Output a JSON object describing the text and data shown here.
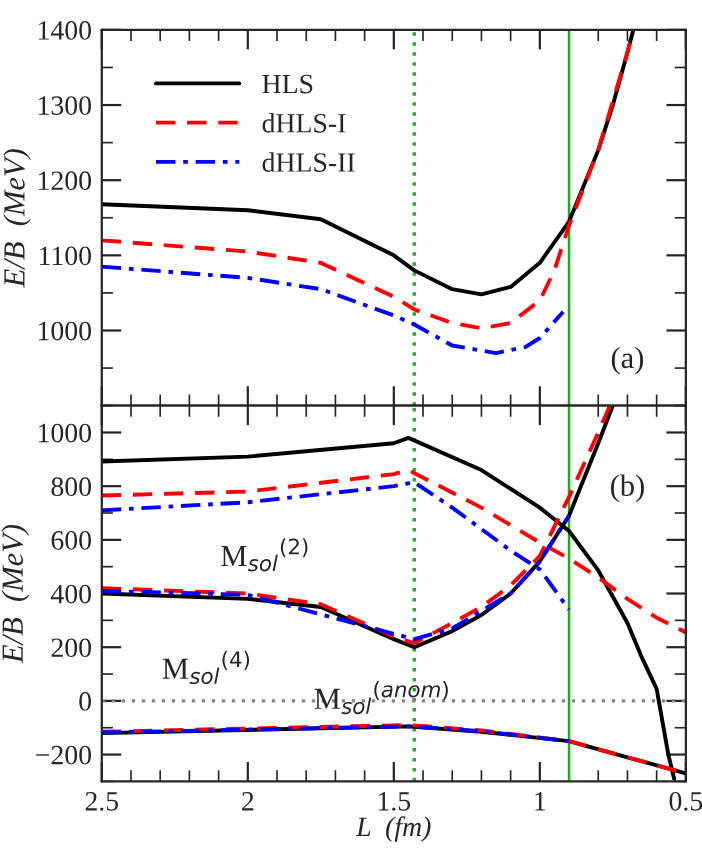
{
  "chart_data": [
    {
      "type": "line",
      "ylabel": "E/B  (MeV)",
      "xlim": [
        2.5,
        0.5
      ],
      "ylim": [
        900,
        1400
      ],
      "yticks": [
        1000,
        1100,
        1200,
        1300,
        1400
      ],
      "tick_labels": "y",
      "legend": "top left",
      "annotations": [
        "(a)"
      ],
      "ref_lines": [
        {
          "axis": "x",
          "value": 1.43,
          "color": "#22aa22",
          "line_style": "dotted"
        },
        {
          "axis": "x",
          "value": 0.9,
          "color": "#22aa22",
          "line_style": "solid"
        }
      ],
      "series": [
        {
          "name": "HLS",
          "color": "#000000",
          "line_style": "solid",
          "x": [
            2.5,
            2.0,
            1.75,
            1.5,
            1.43,
            1.3,
            1.2,
            1.1,
            1.0,
            0.9,
            0.8,
            0.75,
            0.7,
            0.68
          ],
          "values": [
            1168,
            1160,
            1148,
            1100,
            1080,
            1055,
            1048,
            1058,
            1090,
            1145,
            1240,
            1300,
            1370,
            1400
          ]
        },
        {
          "name": "dHLS-I",
          "color": "#ff0000",
          "line_style": "dashed",
          "x": [
            2.5,
            2.0,
            1.75,
            1.5,
            1.43,
            1.3,
            1.2,
            1.1,
            1.0,
            0.95,
            0.9,
            0.8,
            0.7,
            0.68
          ],
          "values": [
            1120,
            1105,
            1090,
            1045,
            1028,
            1010,
            1003,
            1010,
            1040,
            1080,
            1140,
            1240,
            1370,
            1400
          ]
        },
        {
          "name": "dHLS-II",
          "color": "#0000ff",
          "line_style": "dashdot",
          "x": [
            2.5,
            2.0,
            1.75,
            1.5,
            1.43,
            1.3,
            1.15,
            1.05,
            1.0,
            0.92
          ],
          "values": [
            1085,
            1070,
            1055,
            1020,
            1008,
            980,
            970,
            978,
            990,
            1025
          ]
        }
      ]
    },
    {
      "type": "line",
      "xlabel": "L  (fm)",
      "ylabel": "E/B  (MeV)",
      "xlim": [
        2.5,
        0.5
      ],
      "xticks": [
        2.5,
        2,
        1.5,
        1,
        0.5
      ],
      "ylim": [
        -300,
        1100
      ],
      "yticks": [
        {
          "value": -200,
          "label": "−200"
        },
        0,
        200,
        400,
        600,
        800,
        1000
      ],
      "legend": false,
      "annotations": [
        "(b)",
        "M$_{sol}$$^{(2)}$",
        "M$_{sol}$$^{(4)}$",
        "M$_{sol}$$^{(anom)}$"
      ],
      "ref_lines": [
        {
          "axis": "x",
          "value": 1.43,
          "color": "#22aa22",
          "line_style": "dotted"
        },
        {
          "axis": "x",
          "value": 0.9,
          "color": "#22aa22",
          "line_style": "solid"
        },
        {
          "axis": "y",
          "value": 0,
          "color": "#888888",
          "line_style": "dotted"
        }
      ],
      "series": [
        {
          "color": "#000000",
          "line_style": "solid",
          "x": [
            2.5,
            2.0,
            1.5,
            1.45,
            1.2,
            1.0,
            0.9,
            0.8,
            0.7,
            0.65,
            0.6,
            0.56,
            0.54
          ],
          "values": [
            892,
            910,
            960,
            980,
            860,
            720,
            633,
            486,
            290,
            160,
            45,
            -200,
            -290
          ]
        },
        {
          "color": "#000000",
          "line_style": "solid",
          "x": [
            2.5,
            2.0,
            1.75,
            1.5,
            1.43,
            1.3,
            1.2,
            1.1,
            1.0,
            0.9,
            0.8,
            0.75
          ],
          "values": [
            400,
            380,
            350,
            230,
            200,
            260,
            320,
            400,
            520,
            690,
            960,
            1100
          ]
        },
        {
          "color": "#000000",
          "line_style": "solid",
          "x": [
            2.5,
            1.45,
            1.2,
            0.9,
            0.7,
            0.5
          ],
          "values": [
            -120,
            -95,
            -115,
            -150,
            -210,
            -270
          ]
        },
        {
          "color": "#ff0000",
          "line_style": "dashed",
          "x": [
            2.5,
            2.0,
            1.5,
            1.45,
            1.2,
            1.0,
            0.9,
            0.8,
            0.7,
            0.6,
            0.5
          ],
          "values": [
            765,
            780,
            845,
            860,
            720,
            590,
            530,
            460,
            380,
            310,
            255
          ]
        },
        {
          "color": "#ff0000",
          "line_style": "dashed",
          "x": [
            2.5,
            2.0,
            1.75,
            1.5,
            1.43,
            1.3,
            1.2,
            1.1,
            1.0,
            0.9,
            0.8,
            0.76
          ],
          "values": [
            420,
            400,
            360,
            240,
            215,
            290,
            350,
            430,
            540,
            760,
            1000,
            1100
          ]
        },
        {
          "color": "#ff0000",
          "line_style": "dashed",
          "x": [
            2.5,
            1.45,
            1.2,
            0.9,
            0.7,
            0.5
          ],
          "values": [
            -115,
            -90,
            -110,
            -150,
            -210,
            -270
          ]
        },
        {
          "color": "#0000ff",
          "line_style": "dashdot",
          "x": [
            2.5,
            2.0,
            1.5,
            1.43,
            1.3,
            1.1,
            1.0,
            0.9
          ],
          "values": [
            710,
            740,
            800,
            815,
            720,
            560,
            490,
            340
          ]
        },
        {
          "color": "#0000ff",
          "line_style": "dashdot",
          "x": [
            2.5,
            2.0,
            1.5,
            1.43,
            1.3,
            1.1,
            1.0,
            0.9
          ],
          "values": [
            410,
            395,
            250,
            230,
            270,
            400,
            520,
            690
          ]
        },
        {
          "color": "#0000ff",
          "line_style": "dashdot",
          "x": [
            2.5,
            1.45,
            1.2,
            0.9
          ],
          "values": [
            -118,
            -95,
            -113,
            -150
          ]
        }
      ]
    }
  ]
}
